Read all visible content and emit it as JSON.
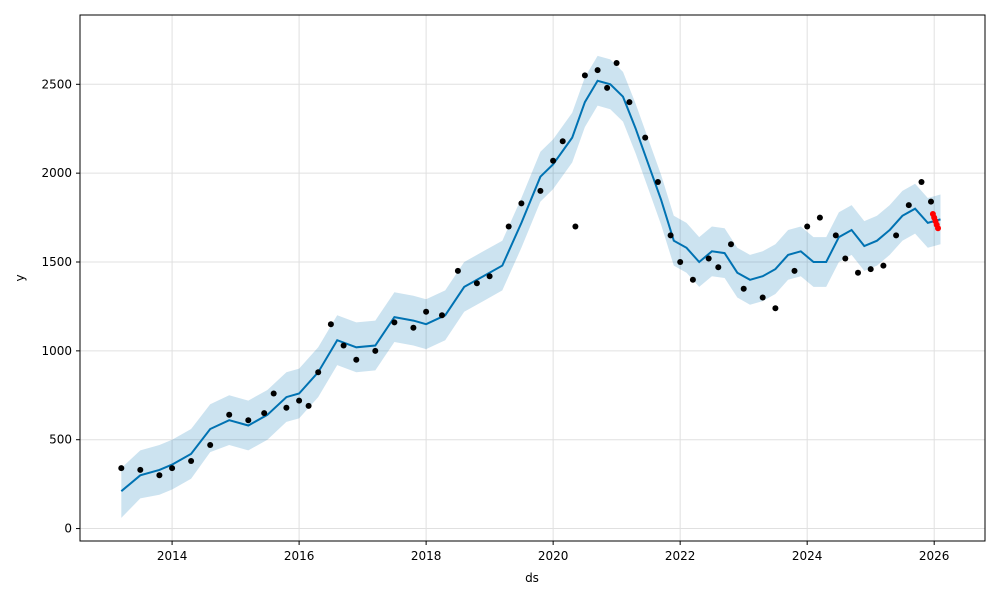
{
  "chart_data": {
    "type": "line",
    "title": "",
    "xlabel": "ds",
    "ylabel": "y",
    "grid": true,
    "xlim": [
      2012.55,
      2026.8
    ],
    "ylim": [
      -70,
      2890
    ],
    "x_ticks": [
      2014,
      2016,
      2018,
      2020,
      2022,
      2024,
      2026
    ],
    "x_tick_labels": [
      "2014",
      "2016",
      "2018",
      "2020",
      "2022",
      "2024",
      "2026"
    ],
    "y_ticks": [
      0,
      500,
      1000,
      1500,
      2000,
      2500
    ],
    "y_tick_labels": [
      "0",
      "500",
      "1000",
      "1500",
      "2000",
      "2500"
    ],
    "colors": {
      "observed": "#000000",
      "forecast": "#0072B2",
      "interval": "#0072B2",
      "highlight": "#ff0000",
      "grid": "#e0e0e0"
    },
    "series": [
      {
        "role": "observed",
        "x": [
          2013.2,
          2013.5,
          2013.8,
          2014.0,
          2014.3,
          2014.6,
          2014.9,
          2015.2,
          2015.45,
          2015.6,
          2015.8,
          2016.0,
          2016.15,
          2016.3,
          2016.5,
          2016.7,
          2016.9,
          2017.2,
          2017.5,
          2017.8,
          2018.0,
          2018.25,
          2018.5,
          2018.8,
          2019.0,
          2019.3,
          2019.5,
          2019.8,
          2020.0,
          2020.15,
          2020.35,
          2020.5,
          2020.7,
          2020.85,
          2021.0,
          2021.2,
          2021.45,
          2021.65,
          2021.85,
          2022.0,
          2022.2,
          2022.45,
          2022.6,
          2022.8,
          2023.0,
          2023.3,
          2023.5,
          2023.8,
          2024.0,
          2024.2,
          2024.45,
          2024.6,
          2024.8,
          2025.0,
          2025.2,
          2025.4,
          2025.6,
          2025.8,
          2025.95
        ],
        "y": [
          340,
          330,
          300,
          340,
          380,
          470,
          640,
          610,
          650,
          760,
          680,
          720,
          690,
          880,
          1150,
          1030,
          950,
          1000,
          1160,
          1130,
          1220,
          1200,
          1450,
          1380,
          1420,
          1700,
          1830,
          1900,
          2070,
          2180,
          1700,
          2550,
          2580,
          2480,
          2620,
          2400,
          2200,
          1950,
          1650,
          1500,
          1400,
          1520,
          1470,
          1600,
          1350,
          1300,
          1240,
          1450,
          1700,
          1750,
          1650,
          1520,
          1440,
          1460,
          1480,
          1650,
          1820,
          1950,
          1840
        ]
      },
      {
        "role": "forecast",
        "x": [
          2013.2,
          2013.5,
          2013.8,
          2014.0,
          2014.3,
          2014.6,
          2014.9,
          2015.2,
          2015.5,
          2015.8,
          2016.0,
          2016.3,
          2016.6,
          2016.9,
          2017.2,
          2017.5,
          2017.8,
          2018.0,
          2018.3,
          2018.6,
          2018.9,
          2019.2,
          2019.5,
          2019.8,
          2020.0,
          2020.3,
          2020.5,
          2020.7,
          2020.9,
          2021.1,
          2021.3,
          2021.5,
          2021.7,
          2021.9,
          2022.1,
          2022.3,
          2022.5,
          2022.7,
          2022.9,
          2023.1,
          2023.3,
          2023.5,
          2023.7,
          2023.9,
          2024.1,
          2024.3,
          2024.5,
          2024.7,
          2024.9,
          2025.1,
          2025.3,
          2025.5,
          2025.7,
          2025.9,
          2026.1
        ],
        "y": [
          210,
          300,
          330,
          360,
          420,
          560,
          610,
          580,
          640,
          740,
          760,
          880,
          1060,
          1020,
          1030,
          1190,
          1170,
          1150,
          1200,
          1360,
          1420,
          1480,
          1720,
          1980,
          2050,
          2200,
          2400,
          2520,
          2500,
          2430,
          2250,
          2050,
          1850,
          1620,
          1580,
          1500,
          1560,
          1550,
          1440,
          1400,
          1420,
          1460,
          1540,
          1560,
          1500,
          1500,
          1640,
          1680,
          1590,
          1620,
          1680,
          1760,
          1800,
          1720,
          1740
        ]
      },
      {
        "role": "interval",
        "x": [
          2013.2,
          2013.5,
          2013.8,
          2014.0,
          2014.3,
          2014.6,
          2014.9,
          2015.2,
          2015.5,
          2015.8,
          2016.0,
          2016.3,
          2016.6,
          2016.9,
          2017.2,
          2017.5,
          2017.8,
          2018.0,
          2018.3,
          2018.6,
          2018.9,
          2019.2,
          2019.5,
          2019.8,
          2020.0,
          2020.3,
          2020.5,
          2020.7,
          2020.9,
          2021.1,
          2021.3,
          2021.5,
          2021.7,
          2021.9,
          2022.1,
          2022.3,
          2022.5,
          2022.7,
          2022.9,
          2023.1,
          2023.3,
          2023.5,
          2023.7,
          2023.9,
          2024.1,
          2024.3,
          2024.5,
          2024.7,
          2024.9,
          2025.1,
          2025.3,
          2025.5,
          2025.7,
          2025.9,
          2026.1
        ],
        "lower": [
          60,
          170,
          190,
          220,
          280,
          430,
          470,
          440,
          500,
          600,
          620,
          740,
          920,
          880,
          890,
          1050,
          1030,
          1010,
          1060,
          1220,
          1280,
          1340,
          1580,
          1840,
          1910,
          2060,
          2260,
          2380,
          2360,
          2290,
          2110,
          1910,
          1710,
          1480,
          1440,
          1360,
          1420,
          1410,
          1300,
          1260,
          1280,
          1320,
          1400,
          1420,
          1360,
          1360,
          1500,
          1540,
          1450,
          1480,
          1540,
          1620,
          1660,
          1580,
          1600
        ],
        "upper": [
          340,
          440,
          470,
          500,
          560,
          700,
          750,
          720,
          780,
          880,
          900,
          1020,
          1200,
          1160,
          1170,
          1330,
          1310,
          1290,
          1340,
          1500,
          1560,
          1620,
          1860,
          2120,
          2190,
          2340,
          2540,
          2660,
          2640,
          2570,
          2390,
          2190,
          1990,
          1760,
          1720,
          1640,
          1700,
          1690,
          1580,
          1540,
          1560,
          1600,
          1680,
          1700,
          1640,
          1640,
          1780,
          1820,
          1730,
          1760,
          1820,
          1900,
          1940,
          1860,
          1880
        ]
      },
      {
        "role": "highlight",
        "x": [
          2025.98,
          2026.0,
          2026.02,
          2026.04,
          2026.06
        ],
        "y": [
          1770,
          1750,
          1730,
          1710,
          1690
        ]
      }
    ]
  }
}
